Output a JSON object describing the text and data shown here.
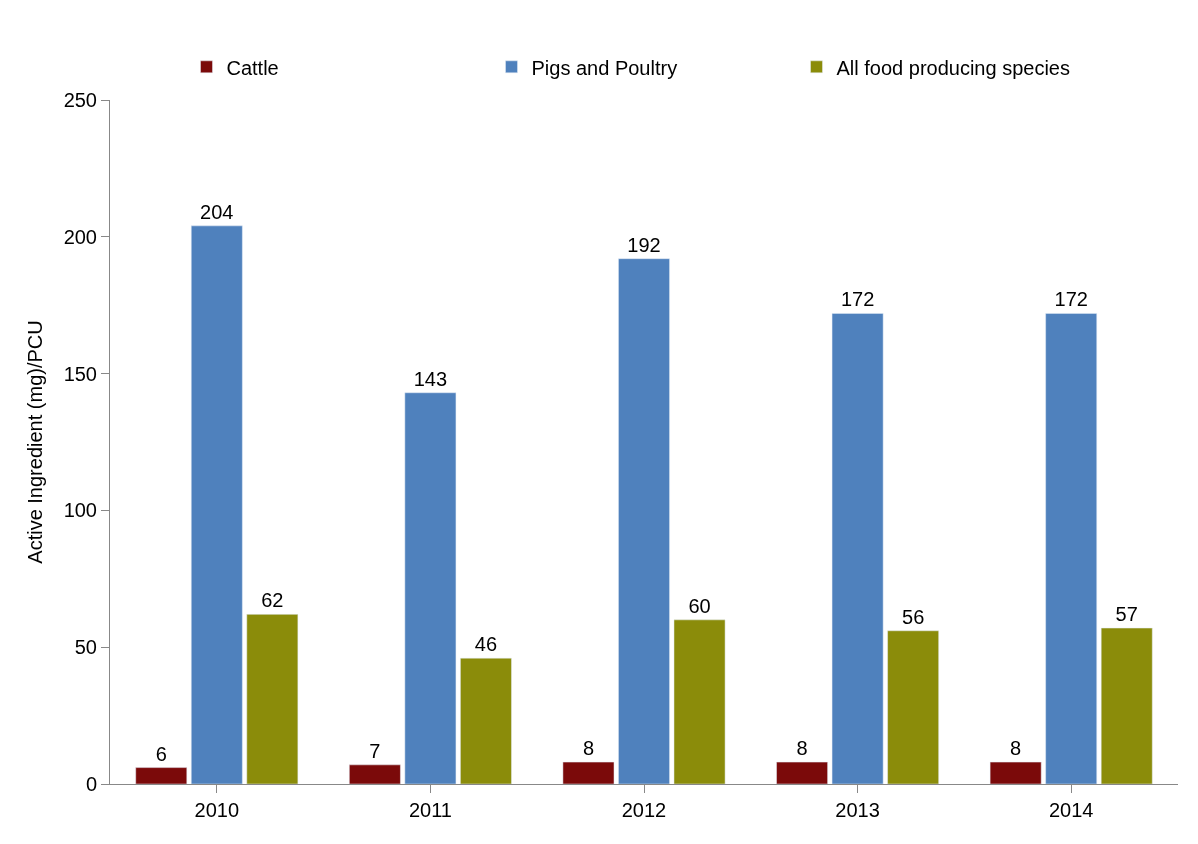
{
  "chart_data": {
    "type": "bar",
    "ylabel": "Active Ingredient (mg)/PCU",
    "categories": [
      "2010",
      "2011",
      "2012",
      "2013",
      "2014"
    ],
    "series": [
      {
        "name": "Cattle",
        "color": "#7b0a0a",
        "values": [
          6,
          7,
          8,
          8,
          8
        ]
      },
      {
        "name": "Pigs and Poultry",
        "color": "#4f81bd",
        "values": [
          204,
          143,
          192,
          172,
          172
        ]
      },
      {
        "name": "All food producing species",
        "color": "#8b8c0a",
        "values": [
          62,
          46,
          60,
          56,
          57
        ]
      }
    ],
    "ylim": [
      0,
      250
    ],
    "yticks": [
      0,
      50,
      100,
      150,
      200,
      250
    ],
    "data_labels": true,
    "grid": false,
    "legend": "top"
  }
}
